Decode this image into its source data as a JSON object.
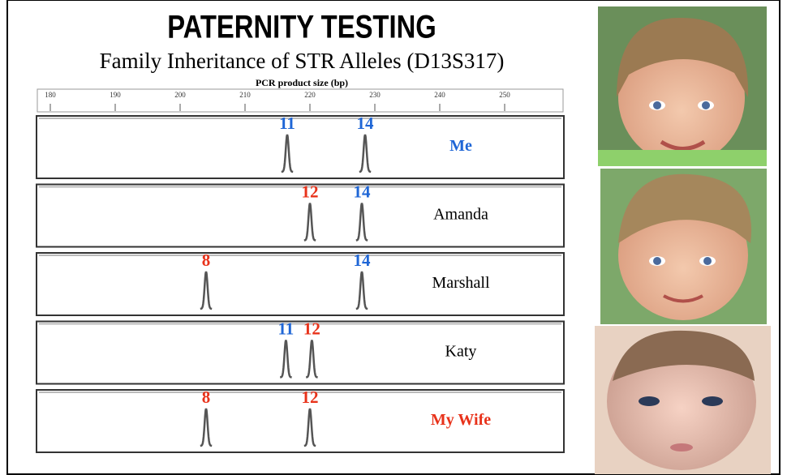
{
  "chart_data": {
    "type": "peaks",
    "title": "PATERNITY TESTING",
    "subtitle": "Family Inheritance of STR Alleles (D13S317)",
    "xlabel": "PCR product size (bp)",
    "xlim": [
      178,
      259
    ],
    "xticks": [
      180,
      190,
      200,
      210,
      220,
      230,
      240,
      250
    ],
    "panels": [
      {
        "name": "Me",
        "color": "#1f66d6",
        "peaks": [
          {
            "x": 216.5,
            "label": 11,
            "color": "#1f66d6"
          },
          {
            "x": 228.5,
            "label": 14,
            "color": "#1f66d6"
          }
        ]
      },
      {
        "name": "Amanda",
        "color": "#000000",
        "peaks": [
          {
            "x": 220,
            "label": 12,
            "color": "#e8321a"
          },
          {
            "x": 228,
            "label": 14,
            "color": "#1f66d6"
          }
        ]
      },
      {
        "name": "Marshall",
        "color": "#000000",
        "peaks": [
          {
            "x": 204,
            "label": 8,
            "color": "#e8321a"
          },
          {
            "x": 228,
            "label": 14,
            "color": "#1f66d6"
          }
        ]
      },
      {
        "name": "Katy",
        "color": "#000000",
        "peaks": [
          {
            "x": 216.3,
            "label": 11,
            "color": "#1f66d6"
          },
          {
            "x": 220.3,
            "label": 12,
            "color": "#e8321a"
          }
        ]
      },
      {
        "name": "My Wife",
        "color": "#e8321a",
        "peaks": [
          {
            "x": 204,
            "label": 8,
            "color": "#e8321a"
          },
          {
            "x": 220,
            "label": 12,
            "color": "#e8321a"
          }
        ]
      }
    ]
  }
}
